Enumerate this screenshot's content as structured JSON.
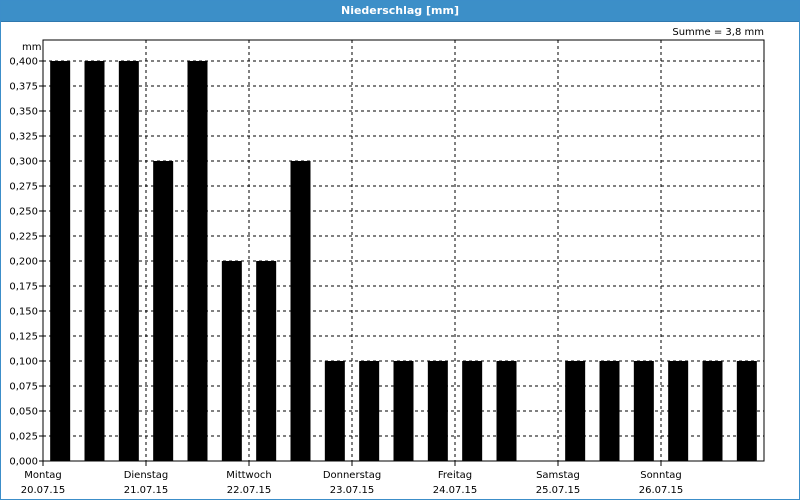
{
  "window": {
    "title": "Niederschlag [mm]"
  },
  "summary": "Summe = 3,8 mm",
  "chart_data": {
    "type": "bar",
    "title": "Niederschlag [mm]",
    "ylabel": "mm",
    "xlabel": "",
    "ylim": [
      0,
      0.4
    ],
    "yticks": [
      "0,000",
      "0,025",
      "0,050",
      "0,075",
      "0,100",
      "0,125",
      "0,150",
      "0,175",
      "0,200",
      "0,225",
      "0,250",
      "0,275",
      "0,300",
      "0,325",
      "0,350",
      "0,375",
      "0,400"
    ],
    "days": [
      {
        "name": "Montag",
        "date": "20.07.15"
      },
      {
        "name": "Dienstag",
        "date": "21.07.15"
      },
      {
        "name": "Mittwoch",
        "date": "22.07.15"
      },
      {
        "name": "Donnerstag",
        "date": "23.07.15"
      },
      {
        "name": "Freitag",
        "date": "24.07.15"
      },
      {
        "name": "Samstag",
        "date": "25.07.15"
      },
      {
        "name": "Sonntag",
        "date": "26.07.15"
      }
    ],
    "values": [
      0.4,
      0.4,
      0.4,
      0.3,
      0.4,
      0.2,
      0.2,
      0.3,
      0.1,
      0.1,
      0.1,
      0.1,
      0.1,
      0.1,
      0,
      0.1,
      0.1,
      0.1,
      0.1,
      0.1,
      0.1
    ],
    "grid": true,
    "bar_color": "#000000"
  }
}
